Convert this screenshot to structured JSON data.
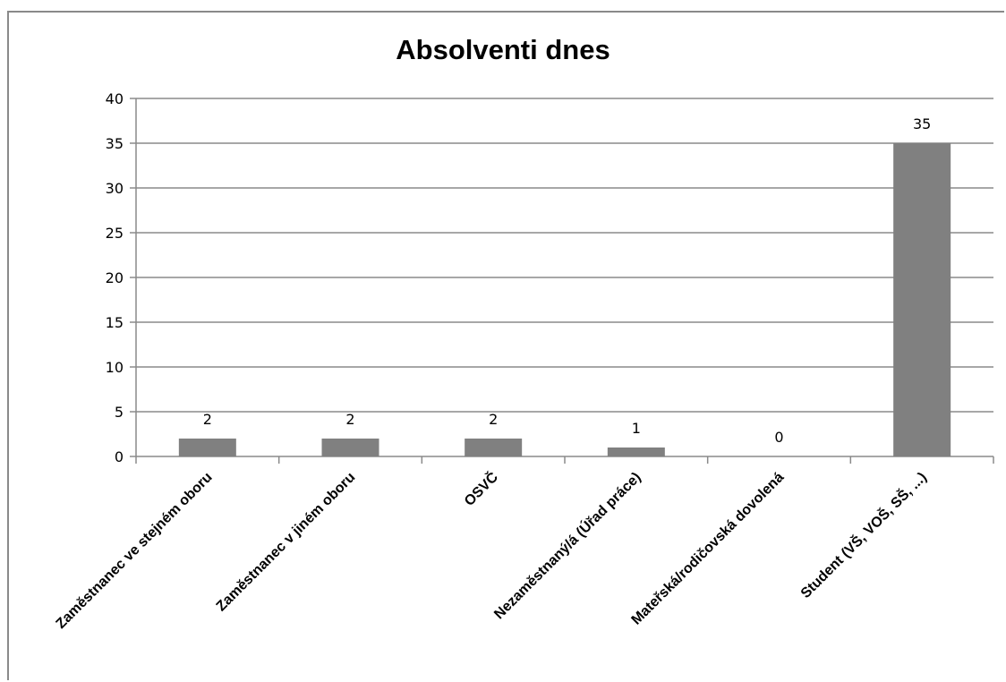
{
  "chart_data": {
    "type": "bar",
    "title": "Absolventi dnes",
    "xlabel": "",
    "ylabel": "",
    "categories": [
      "Zaměstnanec ve stejném oboru",
      "Zaměstnanec v jiném oboru",
      "OSVČ",
      "Nezaměstnaný/á (Úřad práce)",
      "Mateřská/rodičovská dovolená",
      "Student (VŠ, VOŠ, SŠ, ...)"
    ],
    "series": [
      {
        "values": [
          2,
          2,
          2,
          1,
          0,
          35
        ]
      }
    ],
    "data_labels": [
      "2",
      "2",
      "2",
      "1",
      "0",
      "35"
    ],
    "ylim": [
      0,
      40
    ],
    "yticks": [
      0,
      5,
      10,
      15,
      20,
      25,
      30,
      35,
      40
    ],
    "grid": true,
    "legend": "none",
    "bar_color": "#808080",
    "gridline_color": "#8a8a8a"
  }
}
